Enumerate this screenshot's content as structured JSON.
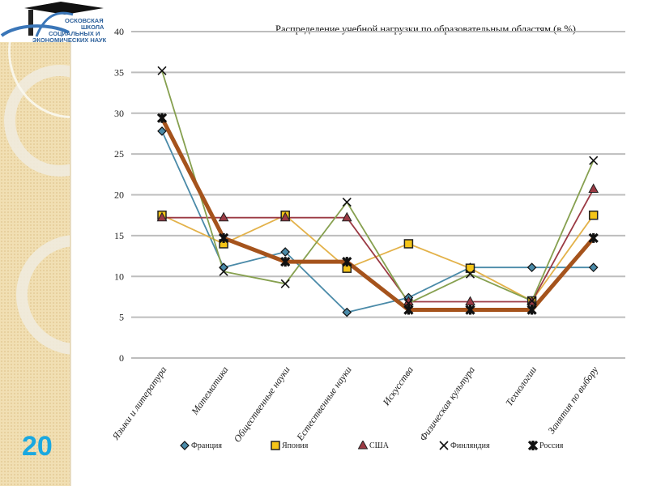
{
  "slide": {
    "page_number": "20",
    "logo_text": [
      "ОСКОВСКАЯ",
      "ШКОЛА",
      "СОЦИАЛЬНЫХ И",
      "ЭКОНОМИЧЕСКИХ НАУК"
    ]
  },
  "chart_data": {
    "type": "line",
    "title": "Распределение учебной нагрузки по образовательным областям (в %)",
    "categories": [
      "Языки и литература",
      "Математика",
      "Общественные науки",
      "Естественные науки",
      "Искусства",
      "Физическая культура",
      "Технологии",
      "Занятия по выбору"
    ],
    "ylim": [
      0,
      40
    ],
    "yticks": [
      0,
      5,
      10,
      15,
      20,
      25,
      30,
      35,
      40
    ],
    "grid": true,
    "legend": "bottom",
    "series": [
      {
        "name": "Франция",
        "color": "#4a8aa8",
        "marker": "diamond",
        "values": [
          27.8,
          11.1,
          13.0,
          5.6,
          7.4,
          11.1,
          11.1,
          11.1
        ]
      },
      {
        "name": "Япония",
        "color": "#e3b24a",
        "marker": "square",
        "values": [
          17.5,
          14.0,
          17.5,
          11.0,
          14.0,
          11.0,
          7.0,
          17.5
        ]
      },
      {
        "name": "США",
        "color": "#9b3a44",
        "marker": "triangle",
        "values": [
          17.2,
          17.2,
          17.2,
          17.2,
          6.9,
          6.9,
          6.9,
          20.7
        ]
      },
      {
        "name": "Финляндия",
        "color": "#86a04f",
        "marker": "x",
        "values": [
          35.2,
          10.6,
          9.1,
          19.1,
          6.7,
          10.3,
          7.0,
          24.2
        ]
      },
      {
        "name": "Россия",
        "color": "#a5531c",
        "marker": "star",
        "values": [
          29.4,
          14.7,
          11.8,
          11.8,
          5.9,
          5.9,
          5.9,
          14.7
        ]
      }
    ]
  }
}
